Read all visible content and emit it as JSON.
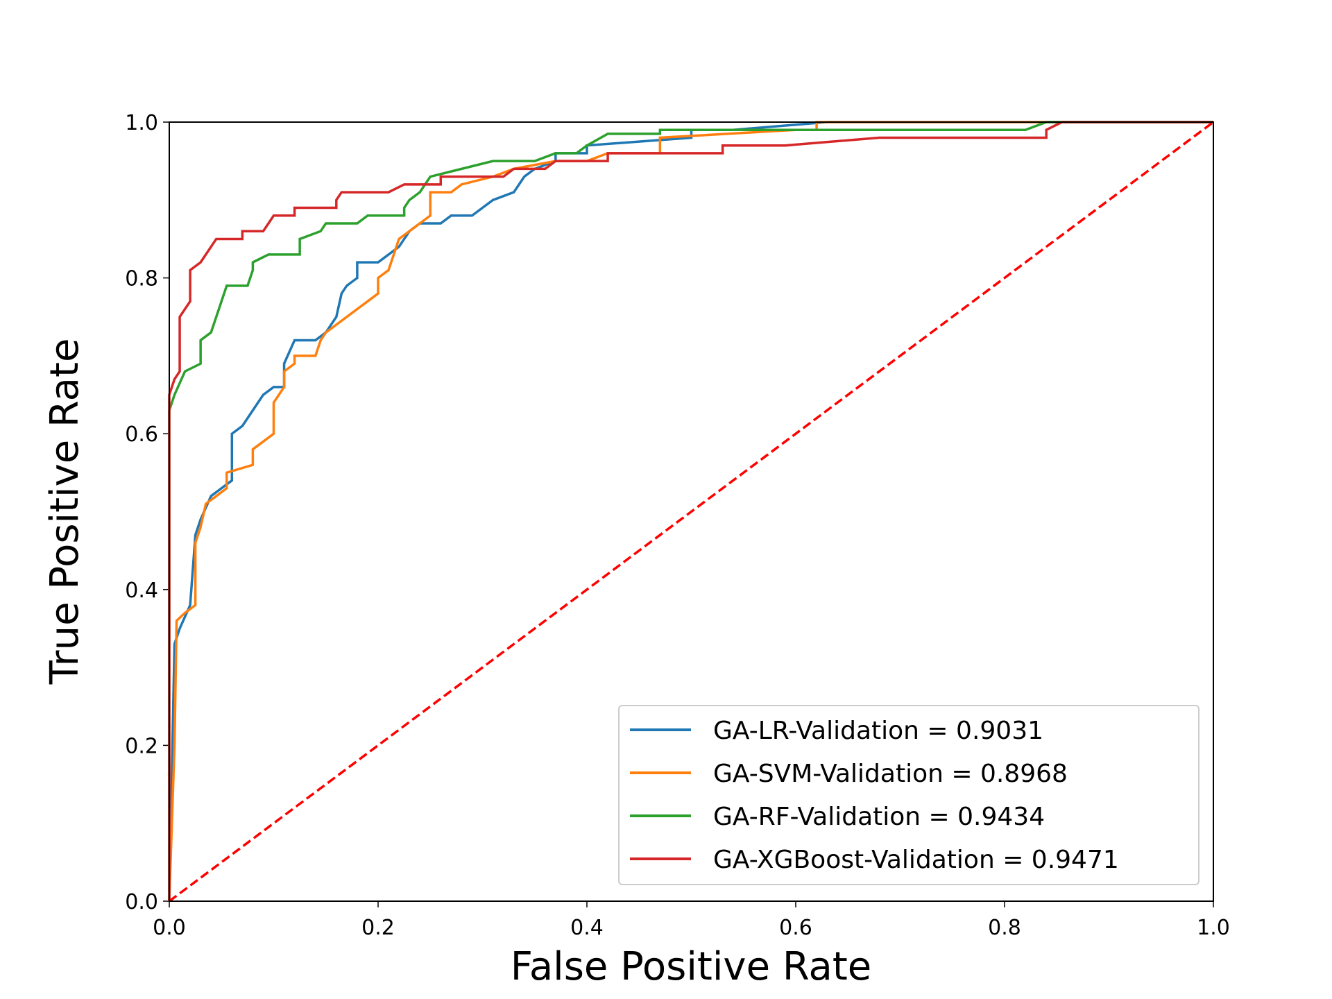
{
  "chart_data": {
    "type": "line",
    "x_label": "False Positive Rate",
    "y_label": "True Positive Rate",
    "xlim": [
      0,
      1
    ],
    "ylim": [
      0,
      1
    ],
    "xticks": [
      {
        "value": 0,
        "label": "0.0"
      },
      0.2,
      0.4,
      0.6,
      0.8,
      {
        "value": 1,
        "label": "1.0"
      }
    ],
    "yticks": [
      {
        "value": 0,
        "label": "0.0"
      },
      0.2,
      0.4,
      0.6,
      0.8,
      {
        "value": 1,
        "label": "1.0"
      }
    ],
    "legend": "lower right",
    "reference_line": {
      "x": [
        0,
        1
      ],
      "values": [
        0,
        1
      ],
      "color": "#ff0000",
      "style": "dashed"
    },
    "series": [
      {
        "name": "GA-LR-Validation = 0.9031",
        "color": "#1f77b4",
        "x": [
          0,
          0.005,
          0.01,
          0.02,
          0.025,
          0.03,
          0.04,
          0.05,
          0.06,
          0.06,
          0.07,
          0.08,
          0.085,
          0.09,
          0.1,
          0.11,
          0.11,
          0.12,
          0.14,
          0.15,
          0.16,
          0.165,
          0.17,
          0.18,
          0.18,
          0.2,
          0.21,
          0.22,
          0.23,
          0.24,
          0.26,
          0.27,
          0.29,
          0.3,
          0.31,
          0.33,
          0.34,
          0.35,
          0.37,
          0.37,
          0.4,
          0.4,
          0.5,
          0.5,
          0.54,
          0.63,
          1
        ],
        "values": [
          0,
          0.33,
          0.35,
          0.38,
          0.47,
          0.49,
          0.52,
          0.53,
          0.54,
          0.6,
          0.61,
          0.63,
          0.64,
          0.65,
          0.66,
          0.66,
          0.69,
          0.72,
          0.72,
          0.73,
          0.75,
          0.78,
          0.79,
          0.8,
          0.82,
          0.82,
          0.83,
          0.84,
          0.86,
          0.87,
          0.87,
          0.88,
          0.88,
          0.89,
          0.9,
          0.91,
          0.93,
          0.94,
          0.95,
          0.96,
          0.96,
          0.97,
          0.98,
          0.99,
          0.99,
          1,
          1
        ]
      },
      {
        "name": "GA-SVM-Validation = 0.8968",
        "color": "#ff7f0e",
        "x": [
          0,
          0.005,
          0.007,
          0.015,
          0.025,
          0.025,
          0.03,
          0.035,
          0.045,
          0.055,
          0.055,
          0.08,
          0.08,
          0.09,
          0.1,
          0.1,
          0.11,
          0.11,
          0.12,
          0.12,
          0.14,
          0.145,
          0.15,
          0.16,
          0.17,
          0.18,
          0.19,
          0.2,
          0.2,
          0.21,
          0.215,
          0.22,
          0.23,
          0.24,
          0.25,
          0.25,
          0.27,
          0.28,
          0.31,
          0.33,
          0.37,
          0.4,
          0.42,
          0.47,
          0.47,
          0.6,
          0.62,
          0.62,
          1
        ],
        "values": [
          0,
          0.2,
          0.36,
          0.37,
          0.38,
          0.46,
          0.48,
          0.51,
          0.52,
          0.53,
          0.55,
          0.56,
          0.58,
          0.59,
          0.6,
          0.64,
          0.66,
          0.68,
          0.69,
          0.7,
          0.7,
          0.72,
          0.73,
          0.74,
          0.75,
          0.76,
          0.77,
          0.78,
          0.8,
          0.81,
          0.83,
          0.85,
          0.86,
          0.87,
          0.88,
          0.91,
          0.91,
          0.92,
          0.93,
          0.94,
          0.95,
          0.95,
          0.96,
          0.96,
          0.98,
          0.99,
          0.99,
          1,
          1
        ]
      },
      {
        "name": "GA-RF-Validation = 0.9434",
        "color": "#2ca02c",
        "x": [
          0,
          0,
          0.005,
          0.015,
          0.03,
          0.03,
          0.04,
          0.045,
          0.05,
          0.055,
          0.075,
          0.08,
          0.08,
          0.095,
          0.125,
          0.125,
          0.145,
          0.15,
          0.18,
          0.19,
          0.225,
          0.225,
          0.23,
          0.24,
          0.25,
          0.28,
          0.31,
          0.35,
          0.37,
          0.39,
          0.4,
          0.42,
          0.47,
          0.47,
          0.82,
          0.84,
          1
        ],
        "values": [
          0,
          0.63,
          0.65,
          0.68,
          0.69,
          0.72,
          0.73,
          0.75,
          0.77,
          0.79,
          0.79,
          0.81,
          0.82,
          0.83,
          0.83,
          0.85,
          0.86,
          0.87,
          0.87,
          0.88,
          0.88,
          0.89,
          0.9,
          0.91,
          0.93,
          0.94,
          0.95,
          0.95,
          0.96,
          0.96,
          0.97,
          0.985,
          0.985,
          0.99,
          0.99,
          1,
          1
        ]
      },
      {
        "name": "GA-XGBoost-Validation = 0.9471",
        "color": "#d62728",
        "x": [
          0,
          0,
          0.005,
          0.01,
          0.01,
          0.02,
          0.02,
          0.03,
          0.035,
          0.04,
          0.045,
          0.07,
          0.07,
          0.09,
          0.095,
          0.1,
          0.12,
          0.12,
          0.16,
          0.16,
          0.165,
          0.21,
          0.225,
          0.26,
          0.26,
          0.32,
          0.33,
          0.36,
          0.37,
          0.42,
          0.42,
          0.53,
          0.53,
          0.59,
          0.68,
          0.84,
          0.84,
          0.855,
          1
        ],
        "values": [
          0,
          0.65,
          0.67,
          0.68,
          0.75,
          0.77,
          0.81,
          0.82,
          0.83,
          0.84,
          0.85,
          0.85,
          0.86,
          0.86,
          0.87,
          0.88,
          0.88,
          0.89,
          0.89,
          0.9,
          0.91,
          0.91,
          0.92,
          0.92,
          0.93,
          0.93,
          0.94,
          0.94,
          0.95,
          0.95,
          0.96,
          0.96,
          0.97,
          0.97,
          0.98,
          0.98,
          0.99,
          1,
          1
        ]
      }
    ]
  }
}
